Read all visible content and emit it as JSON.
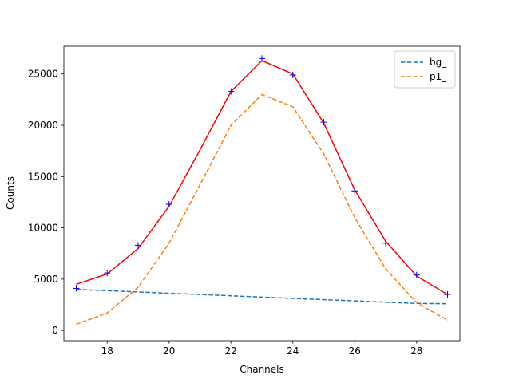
{
  "chart_data": {
    "type": "line",
    "xlabel": "Channels",
    "ylabel": "Counts",
    "xlim": [
      16.6,
      29.4
    ],
    "ylim": [
      -1000,
      27700
    ],
    "xticks": [
      18,
      20,
      22,
      24,
      26,
      28
    ],
    "yticks": [
      0,
      5000,
      10000,
      15000,
      20000,
      25000
    ],
    "grid": false,
    "legend_position": "top-right",
    "x": [
      17,
      18,
      19,
      20,
      21,
      22,
      23,
      24,
      25,
      26,
      27,
      28,
      29
    ],
    "series": [
      {
        "key": "data",
        "style": "markers",
        "marker": "+",
        "color": "#0000ff",
        "values": [
          4100,
          5600,
          8300,
          12300,
          17400,
          23300,
          26500,
          24900,
          20300,
          13600,
          8500,
          5400,
          3500
        ]
      },
      {
        "key": "fit",
        "style": "solid",
        "color": "#ff0000",
        "values": [
          4500,
          5500,
          8000,
          12100,
          17600,
          23300,
          26300,
          25000,
          20200,
          13700,
          8700,
          5300,
          3500
        ]
      },
      {
        "key": "bg",
        "name": "bg_",
        "style": "dashed",
        "color": "#1f77b4",
        "values": [
          4000,
          3880,
          3750,
          3620,
          3500,
          3380,
          3250,
          3120,
          3000,
          2880,
          2750,
          2630,
          2600
        ]
      },
      {
        "key": "p1",
        "name": "p1_",
        "style": "dashed",
        "color": "#ff7f0e",
        "values": [
          600,
          1700,
          4200,
          8500,
          14200,
          20000,
          23000,
          21800,
          17200,
          11000,
          6000,
          2700,
          1000
        ]
      }
    ],
    "legend": [
      "bg_",
      "p1_"
    ]
  }
}
